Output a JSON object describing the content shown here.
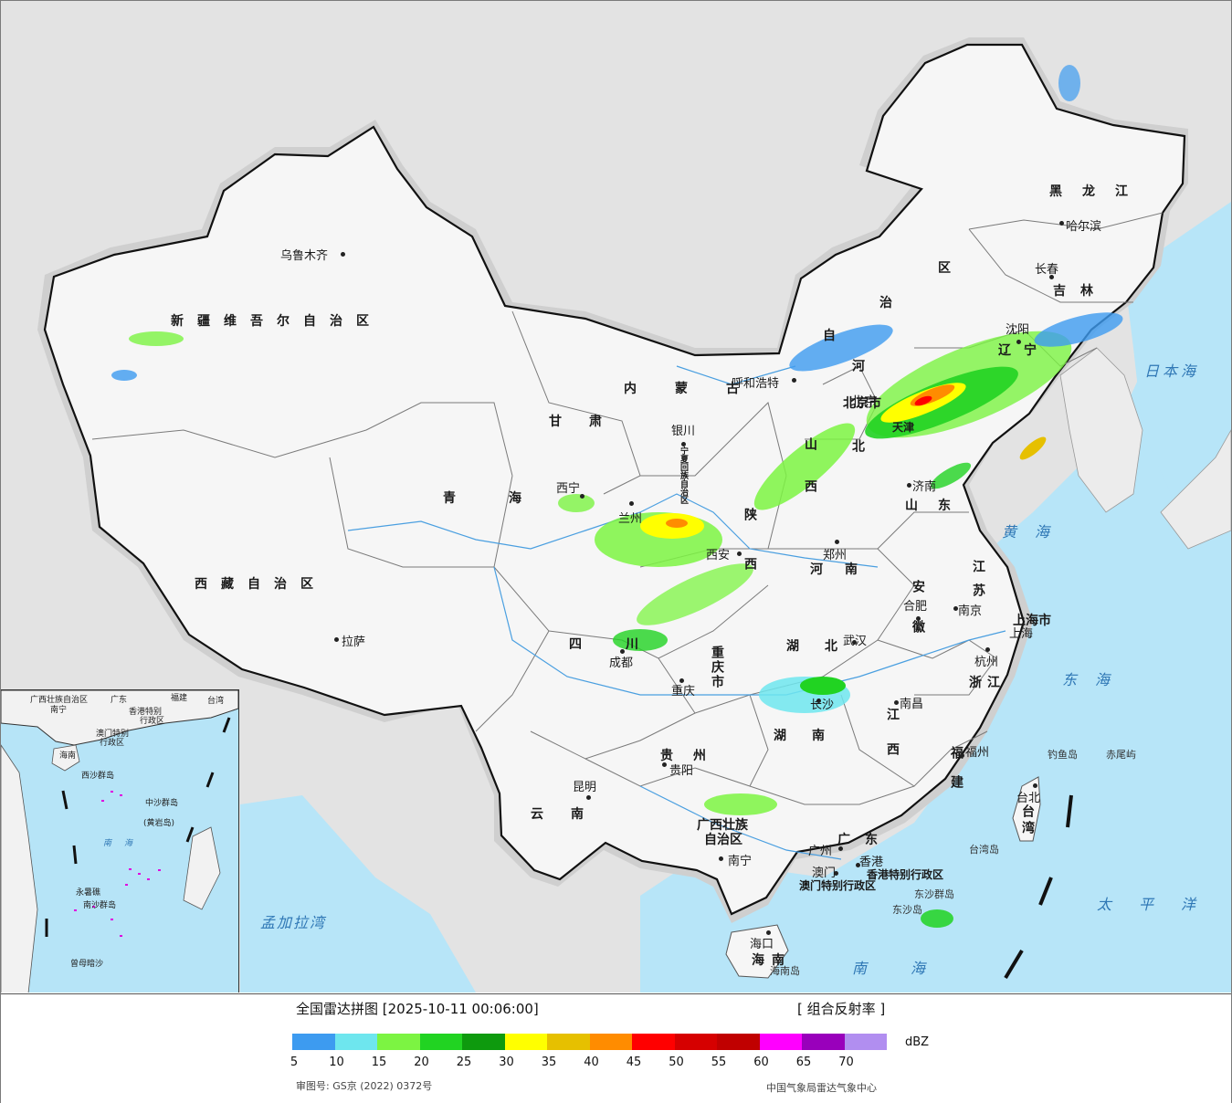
{
  "map": {
    "provinces": [
      {
        "id": "xinjiang",
        "text": "新疆维吾尔自治区"
      },
      {
        "id": "xizang",
        "text": "西藏自治区"
      },
      {
        "id": "qinghai",
        "text": "青海"
      },
      {
        "id": "gansu",
        "text": "甘肃"
      },
      {
        "id": "neimenggu",
        "text": "内蒙古"
      },
      {
        "id": "ningxia",
        "text": "宁夏回族自治区"
      },
      {
        "id": "shaanxi",
        "text": "陕西"
      },
      {
        "id": "shanxi",
        "text": "山西"
      },
      {
        "id": "hebei",
        "text": "河北"
      },
      {
        "id": "beijing",
        "text": "北京市"
      },
      {
        "id": "tianjin",
        "text": "天津"
      },
      {
        "id": "shandong",
        "text": "山东"
      },
      {
        "id": "henan",
        "text": "河南"
      },
      {
        "id": "jiangsu",
        "text": "江苏"
      },
      {
        "id": "anhui",
        "text": "安徽"
      },
      {
        "id": "shanghai",
        "text": "上海市"
      },
      {
        "id": "zhejiang",
        "text": "浙江"
      },
      {
        "id": "hubei",
        "text": "湖北"
      },
      {
        "id": "hunan",
        "text": "湖南"
      },
      {
        "id": "jiangxi",
        "text": "江西"
      },
      {
        "id": "fujian",
        "text": "福建"
      },
      {
        "id": "sichuan",
        "text": "四川"
      },
      {
        "id": "chongqing",
        "text": "重庆市"
      },
      {
        "id": "guizhou",
        "text": "贵州"
      },
      {
        "id": "yunnan",
        "text": "云南"
      },
      {
        "id": "guangxi1",
        "text": "广西壮族"
      },
      {
        "id": "guangxi2",
        "text": "自治区"
      },
      {
        "id": "guangdong",
        "text": "广东"
      },
      {
        "id": "hainan",
        "text": "海南"
      },
      {
        "id": "taiwan",
        "text": "台湾"
      },
      {
        "id": "liaoning",
        "text": "辽宁"
      },
      {
        "id": "jilin",
        "text": "吉林"
      },
      {
        "id": "heilongjiang",
        "text": "黑龙江"
      },
      {
        "id": "hk",
        "text": "香港特别行政区"
      },
      {
        "id": "macao",
        "text": "澳门特别行政区"
      },
      {
        "id": "nmg_qu",
        "text": "区"
      },
      {
        "id": "nmg_zhi",
        "text": "治"
      },
      {
        "id": "nmg_zi",
        "text": "自"
      }
    ],
    "cities": [
      {
        "id": "urumqi",
        "text": "乌鲁木齐"
      },
      {
        "id": "lhasa",
        "text": "拉萨"
      },
      {
        "id": "xining",
        "text": "西宁"
      },
      {
        "id": "lanzhou",
        "text": "兰州"
      },
      {
        "id": "yinchuan",
        "text": "银川"
      },
      {
        "id": "hohhot",
        "text": "呼和浩特"
      },
      {
        "id": "beijing_c",
        "text": "北京"
      },
      {
        "id": "xian",
        "text": "西安"
      },
      {
        "id": "zhengzhou",
        "text": "郑州"
      },
      {
        "id": "jinan",
        "text": "济南"
      },
      {
        "id": "shenyang",
        "text": "沈阳"
      },
      {
        "id": "changchun",
        "text": "长春"
      },
      {
        "id": "harbin",
        "text": "哈尔滨"
      },
      {
        "id": "hefei",
        "text": "合肥"
      },
      {
        "id": "nanjing",
        "text": "南京"
      },
      {
        "id": "shanghai_c",
        "text": "上海"
      },
      {
        "id": "hangzhou",
        "text": "杭州"
      },
      {
        "id": "wuhan",
        "text": "武汉"
      },
      {
        "id": "chengdu",
        "text": "成都"
      },
      {
        "id": "chongqing_c",
        "text": "重庆"
      },
      {
        "id": "changsha",
        "text": "长沙"
      },
      {
        "id": "nanchang",
        "text": "南昌"
      },
      {
        "id": "fuzhou",
        "text": "福州"
      },
      {
        "id": "guiyang",
        "text": "贵阳"
      },
      {
        "id": "kunming",
        "text": "昆明"
      },
      {
        "id": "nanning",
        "text": "南宁"
      },
      {
        "id": "guangzhou",
        "text": "广州"
      },
      {
        "id": "hongkong",
        "text": "香港"
      },
      {
        "id": "macau",
        "text": "澳门"
      },
      {
        "id": "haikou",
        "text": "海口"
      },
      {
        "id": "taibei",
        "text": "台北"
      }
    ],
    "seas": [
      {
        "id": "japan_sea",
        "text": "日本海"
      },
      {
        "id": "yellow_sea",
        "text": "黄海"
      },
      {
        "id": "east_sea",
        "text": "东海"
      },
      {
        "id": "pacific",
        "text": "太平洋"
      },
      {
        "id": "south_sea",
        "text": "南海"
      },
      {
        "id": "bengal",
        "text": "孟加拉湾"
      }
    ],
    "islands": [
      {
        "id": "diaoyu",
        "text": "钓鱼岛"
      },
      {
        "id": "chiwei",
        "text": "赤尾屿"
      },
      {
        "id": "taiwan_dao",
        "text": "台湾岛"
      },
      {
        "id": "dongsha_qd",
        "text": "东沙群岛"
      },
      {
        "id": "dongsha_d",
        "text": "东沙岛"
      },
      {
        "id": "hainan_dao",
        "text": "海南岛"
      }
    ],
    "inset": [
      {
        "id": "i_gx",
        "text": "广西壮族自治区"
      },
      {
        "id": "i_gd",
        "text": "广东"
      },
      {
        "id": "i_fj",
        "text": "福建"
      },
      {
        "id": "i_tw",
        "text": "台湾"
      },
      {
        "id": "i_nn",
        "text": "南宁"
      },
      {
        "id": "i_hk",
        "text": "香港特别"
      },
      {
        "id": "i_hk2",
        "text": "行政区"
      },
      {
        "id": "i_mo",
        "text": "澳门特别"
      },
      {
        "id": "i_mo2",
        "text": "行政区"
      },
      {
        "id": "i_hn",
        "text": "海南"
      },
      {
        "id": "i_xs",
        "text": "西沙群岛"
      },
      {
        "id": "i_zs",
        "text": "中沙群岛"
      },
      {
        "id": "i_hy",
        "text": "(黄岩岛)"
      },
      {
        "id": "i_nh",
        "text": "南海"
      },
      {
        "id": "i_ns",
        "text": "南沙群岛"
      },
      {
        "id": "i_ys",
        "text": "永暑礁"
      },
      {
        "id": "i_zm",
        "text": "曾母暗沙"
      }
    ]
  },
  "legend": {
    "title": "全国雷达拼图 [2025-10-11 00:06:00]",
    "type_label": "[ 组合反射率 ]",
    "unit": "dBZ",
    "colors": [
      "#3d9bf0",
      "#6ee6ee",
      "#7cf442",
      "#21d322",
      "#0e9a0e",
      "#ffff00",
      "#e6c000",
      "#ff8c00",
      "#ff0000",
      "#d60000",
      "#c00000",
      "#ff00ff",
      "#9900bb",
      "#b18ef0"
    ],
    "ticks": [
      "5",
      "10",
      "15",
      "20",
      "25",
      "30",
      "35",
      "40",
      "45",
      "50",
      "55",
      "60",
      "65",
      "70"
    ],
    "approval": "审图号: GS京 (2022) 0372号",
    "org": "中国气象局雷达气象中心"
  }
}
